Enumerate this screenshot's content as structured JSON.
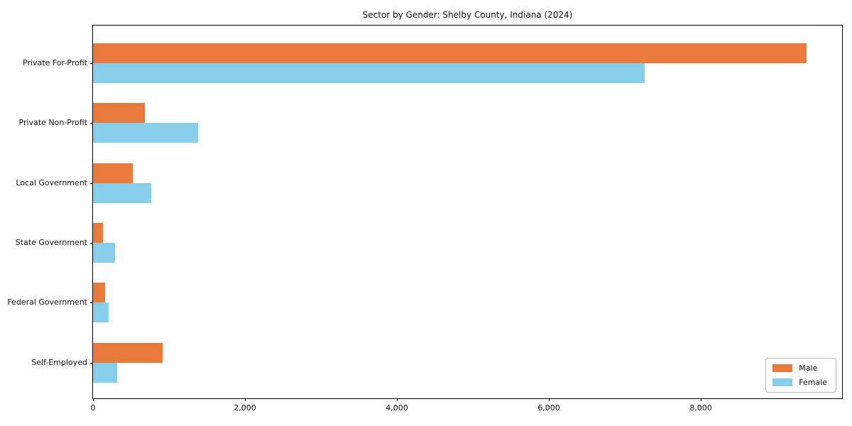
{
  "chart_data": {
    "type": "bar",
    "orientation": "horizontal",
    "title": "Sector by Gender: Shelby County, Indiana (2024)",
    "categories": [
      "Private For-Profit",
      "Private Non-Profit",
      "Local Government",
      "State Government",
      "Federal Government",
      "Self-Employed"
    ],
    "series": [
      {
        "name": "Male",
        "color": "#e97a3c",
        "values": [
          9390,
          680,
          520,
          130,
          160,
          915
        ]
      },
      {
        "name": "Female",
        "color": "#87ceeb",
        "values": [
          7265,
          1380,
          765,
          290,
          210,
          315
        ]
      }
    ],
    "xlabel": "",
    "ylabel": "",
    "xlim": [
      0,
      9860
    ],
    "xticks": [
      0,
      2000,
      4000,
      6000,
      8000
    ],
    "xtick_labels": [
      "0",
      "2,000",
      "4,000",
      "6,000",
      "8,000"
    ],
    "grid": false,
    "legend_position": "lower right",
    "frame_color": "#000000",
    "background_color": "#ffffff"
  }
}
